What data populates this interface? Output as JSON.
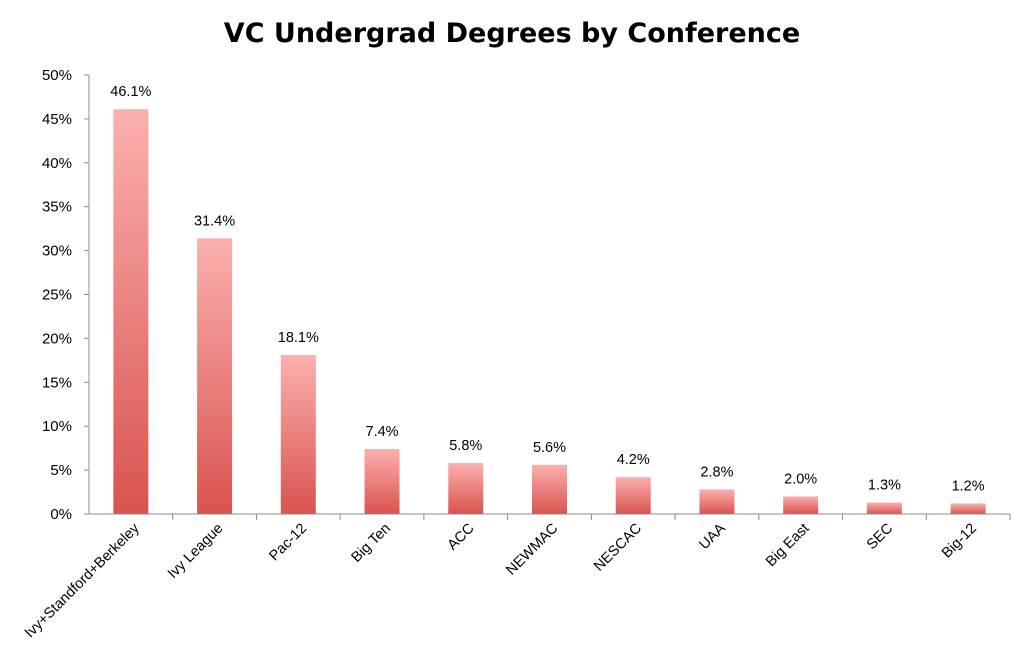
{
  "chart_data": {
    "type": "bar",
    "title": "VC Undergrad Degrees by Conference",
    "xlabel": "",
    "ylabel": "",
    "categories": [
      "Ivy+Standford+Berkeley",
      "Ivy League",
      "Pac-12",
      "Big Ten",
      "ACC",
      "NEWMAC",
      "NESCAC",
      "UAA",
      "Big East",
      "SEC",
      "Big-12"
    ],
    "values": [
      46.1,
      31.4,
      18.1,
      7.4,
      5.8,
      5.6,
      4.2,
      2.8,
      2.0,
      1.3,
      1.2
    ],
    "value_labels": [
      "46.1%",
      "31.4%",
      "18.1%",
      "7.4%",
      "5.8%",
      "5.6%",
      "4.2%",
      "2.8%",
      "2.0%",
      "1.3%",
      "1.2%"
    ],
    "ylim": [
      0,
      50
    ],
    "yticks": [
      0,
      5,
      10,
      15,
      20,
      25,
      30,
      35,
      40,
      45,
      50
    ],
    "ytick_labels": [
      "0%",
      "5%",
      "10%",
      "15%",
      "20%",
      "25%",
      "30%",
      "35%",
      "40%",
      "45%",
      "50%"
    ],
    "grid": false,
    "legend": "none",
    "colors": {
      "bar_top": "#fbb0ae",
      "bar_bottom": "#d9534f",
      "axis": "#8c8c8c",
      "text": "#000000"
    }
  }
}
